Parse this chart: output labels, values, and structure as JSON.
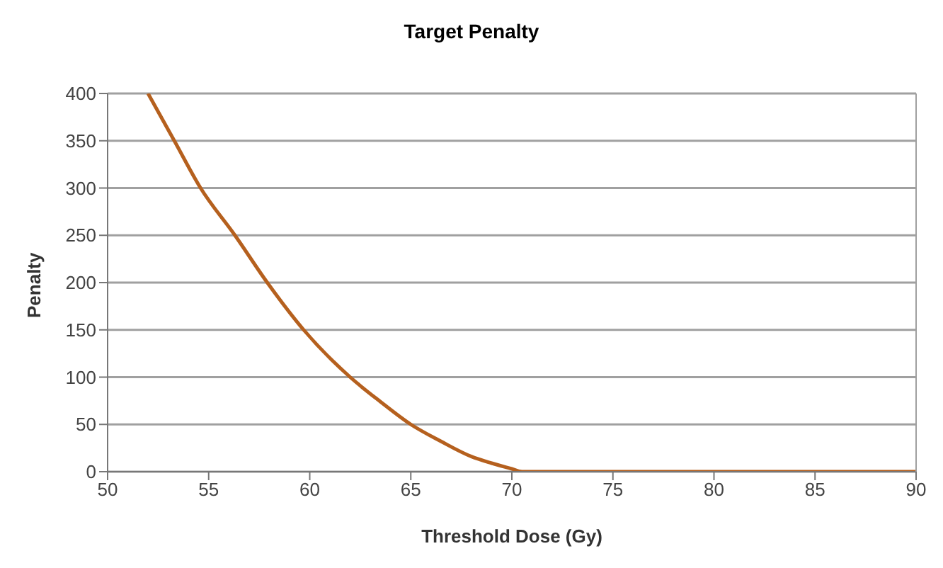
{
  "chart_data": {
    "type": "line",
    "title": "Target Penalty",
    "xlabel": "Threshold Dose (Gy)",
    "ylabel": "Penalty",
    "x": [
      52,
      53.3,
      54.6,
      56.3,
      57.9,
      59.7,
      62,
      63.5,
      65,
      66.5,
      68,
      69,
      70,
      70.5,
      75,
      80,
      85,
      90
    ],
    "series": [
      {
        "color": "#b5601e",
        "values": [
          400,
          350,
          300,
          250,
          200,
          150,
          100,
          74,
          50,
          32,
          16,
          9,
          3,
          0,
          0,
          0,
          0,
          0
        ]
      }
    ],
    "xlim": [
      50,
      90
    ],
    "xticks": [
      50,
      55,
      60,
      65,
      70,
      75,
      80,
      85,
      90
    ],
    "ylim": [
      0,
      400
    ],
    "yticks": [
      0,
      50,
      100,
      150,
      200,
      250,
      300,
      350,
      400
    ],
    "grid": "y",
    "legend": false,
    "marker": "none",
    "line_style": "solid"
  }
}
